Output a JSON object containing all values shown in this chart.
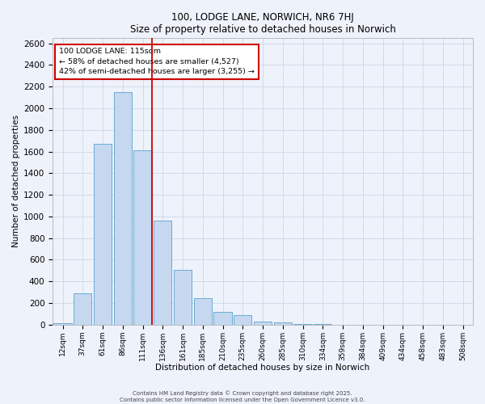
{
  "title": "100, LODGE LANE, NORWICH, NR6 7HJ",
  "subtitle": "Size of property relative to detached houses in Norwich",
  "xlabel": "Distribution of detached houses by size in Norwich",
  "ylabel": "Number of detached properties",
  "bar_labels": [
    "12sqm",
    "37sqm",
    "61sqm",
    "86sqm",
    "111sqm",
    "136sqm",
    "161sqm",
    "185sqm",
    "210sqm",
    "235sqm",
    "260sqm",
    "285sqm",
    "310sqm",
    "334sqm",
    "359sqm",
    "384sqm",
    "409sqm",
    "434sqm",
    "458sqm",
    "483sqm",
    "508sqm"
  ],
  "bar_values": [
    15,
    290,
    1670,
    2150,
    1610,
    960,
    510,
    245,
    120,
    90,
    30,
    20,
    5,
    3,
    2,
    1,
    1,
    0,
    1,
    0,
    0
  ],
  "bar_color": "#c5d8f0",
  "bar_edgecolor": "#6aaad4",
  "background_color": "#eef2fb",
  "grid_color": "#c8d0e0",
  "vline_color": "#cc0000",
  "vline_pos": 4.45,
  "ylim": [
    0,
    2650
  ],
  "yticks": [
    0,
    200,
    400,
    600,
    800,
    1000,
    1200,
    1400,
    1600,
    1800,
    2000,
    2200,
    2400,
    2600
  ],
  "annotation_title": "100 LODGE LANE: 115sqm",
  "annotation_line1": "← 58% of detached houses are smaller (4,527)",
  "annotation_line2": "42% of semi-detached houses are larger (3,255) →",
  "annotation_box_color": "#ffffff",
  "annotation_border_color": "#cc0000",
  "footer_line1": "Contains HM Land Registry data © Crown copyright and database right 2025.",
  "footer_line2": "Contains public sector information licensed under the Open Government Licence v3.0."
}
